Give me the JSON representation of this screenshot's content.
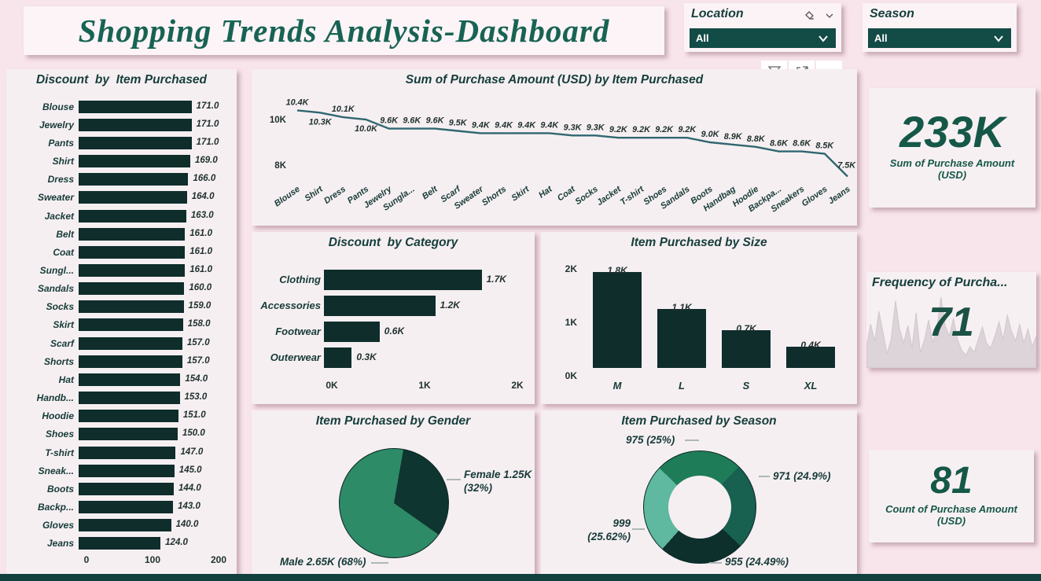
{
  "page": {
    "title": "Shopping Trends Analysis-Dashboard",
    "theme": {
      "background": "#F8E4EB",
      "panel": "#F6EFF2",
      "bar_dark": "#0E2D2B",
      "title_green": "#186353",
      "card_green": "#155848",
      "slicer_dropdown": "#134B46",
      "line_stroke": "#2F6770",
      "bottom_strip": "#11413E"
    }
  },
  "slicers": {
    "location": {
      "label": "Location",
      "value": "All",
      "icons": [
        "eraser-icon",
        "chevron-down-icon"
      ]
    },
    "season": {
      "label": "Season",
      "value": "All"
    }
  },
  "visual_toolbar": {
    "icons": [
      "filter-icon",
      "focus-mode-icon",
      "more-options-icon"
    ]
  },
  "cards": {
    "sum": {
      "value": "233K",
      "label": "Sum of Purchase Amount (USD)"
    },
    "frequency": {
      "title": "Frequency of Purcha...",
      "value": "71",
      "sparkline": [
        30,
        62,
        38,
        80,
        50,
        20,
        42,
        95,
        55,
        35,
        60,
        28,
        78,
        22,
        40,
        68,
        36,
        55,
        100,
        60,
        45,
        70,
        40,
        25,
        18,
        30,
        22,
        40,
        58,
        35,
        28,
        45,
        65,
        40,
        75,
        52,
        38,
        62,
        35,
        55,
        30,
        45
      ]
    },
    "count": {
      "value": "81",
      "label": "Count of Purchase Amount (USD)"
    }
  },
  "chart_data": [
    {
      "id": "discount_by_item",
      "type": "bar",
      "orientation": "horizontal",
      "title": "Discount  by  Item Purchased",
      "categories": [
        "Blouse",
        "Jewelry",
        "Pants",
        "Shirt",
        "Dress",
        "Sweater",
        "Jacket",
        "Belt",
        "Coat",
        "Sungl...",
        "Sandals",
        "Socks",
        "Skirt",
        "Scarf",
        "Shorts",
        "Hat",
        "Handb...",
        "Hoodie",
        "Shoes",
        "T-shirt",
        "Sneak...",
        "Boots",
        "Backp...",
        "Gloves",
        "Jeans"
      ],
      "values": [
        171,
        171,
        171,
        169,
        166,
        164,
        163,
        161,
        161,
        161,
        160,
        159,
        158,
        157,
        157,
        154,
        153,
        151,
        150,
        147,
        145,
        144,
        143,
        140,
        124
      ],
      "label_format": "fixed1",
      "xticks": [
        "0",
        "100",
        "200"
      ],
      "xlim": [
        0,
        200
      ]
    },
    {
      "id": "purchase_by_item",
      "type": "line",
      "title": "Sum of Purchase Amount (USD) by Item Purchased",
      "categories": [
        "Blouse",
        "Shirt",
        "Dress",
        "Pants",
        "Jewelry",
        "Sungla...",
        "Belt",
        "Scarf",
        "Sweater",
        "Shorts",
        "Skirt",
        "Hat",
        "Coat",
        "Socks",
        "Jacket",
        "T-shirt",
        "Shoes",
        "Sandals",
        "Boots",
        "Handbag",
        "Hoodie",
        "Backpa...",
        "Sneakers",
        "Gloves",
        "Jeans"
      ],
      "values_k": [
        10.4,
        10.3,
        10.1,
        10.0,
        9.6,
        9.6,
        9.6,
        9.5,
        9.4,
        9.4,
        9.4,
        9.4,
        9.3,
        9.3,
        9.2,
        9.2,
        9.2,
        9.2,
        9.0,
        8.9,
        8.8,
        8.6,
        8.6,
        8.5,
        7.5
      ],
      "label_format": "fixed1K",
      "yticks": [
        {
          "label": "10K",
          "value_k": 10
        },
        {
          "label": "8K",
          "value_k": 8
        }
      ],
      "ylim_k": [
        7.0,
        10.8
      ],
      "grid": false,
      "legend": "none"
    },
    {
      "id": "discount_by_category",
      "type": "bar",
      "orientation": "horizontal",
      "title": "Discount  by Category",
      "categories": [
        "Clothing",
        "Accessories",
        "Footwear",
        "Outerwear"
      ],
      "values_k": [
        1.7,
        1.2,
        0.6,
        0.3
      ],
      "label_format": "fixed1K",
      "xticks": [
        "0K",
        "1K",
        "2K"
      ],
      "xlim_k": [
        0,
        2
      ]
    },
    {
      "id": "item_by_size",
      "type": "bar",
      "orientation": "vertical",
      "title": "Item Purchased by Size",
      "categories": [
        "M",
        "L",
        "S",
        "XL"
      ],
      "values_k": [
        1.8,
        1.1,
        0.7,
        0.4
      ],
      "label_format": "fixed1K",
      "yticks": [
        "2K",
        "1K",
        "0K"
      ],
      "ylim_k": [
        0,
        2
      ]
    },
    {
      "id": "item_by_gender",
      "type": "pie",
      "title": "Item Purchased by Gender",
      "start_angle_deg": 10,
      "slices": [
        {
          "name": "Female",
          "value_k": 1.25,
          "pct": 32,
          "label": "Female 1.25K (32%)",
          "color": "#0F3531"
        },
        {
          "name": "Male",
          "value_k": 2.65,
          "pct": 68,
          "label": "Male 2.65K (68%)",
          "color": "#2E8B67"
        }
      ]
    },
    {
      "id": "item_by_season",
      "type": "donut",
      "title": "Item Purchased by Season",
      "start_angle_deg": -46,
      "slices": [
        {
          "value": 975,
          "pct": 25.0,
          "label": "975 (25%)",
          "color": "#1F7C58"
        },
        {
          "value": 971,
          "pct": 24.9,
          "label": "971 (24.9%)",
          "color": "#186050"
        },
        {
          "value": 955,
          "pct": 24.49,
          "label": "955 (24.49%)",
          "color": "#0D302C"
        },
        {
          "value": 999,
          "pct": 25.62,
          "label": "999 (25.62%)",
          "color": "#5FB8A0"
        }
      ]
    }
  ]
}
